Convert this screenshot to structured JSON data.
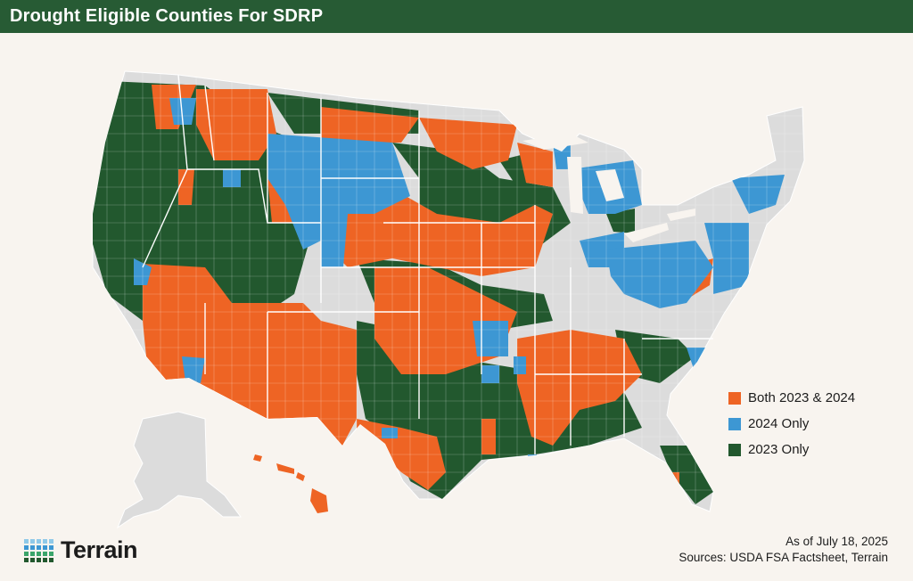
{
  "header": {
    "title": "Drought Eligible Counties For SDRP"
  },
  "legend": {
    "items": [
      {
        "label": "Both 2023 & 2024",
        "color": "#ee6424"
      },
      {
        "label": "2024 Only",
        "color": "#3d97d3"
      },
      {
        "label": "2023 Only",
        "color": "#22582e"
      }
    ]
  },
  "colors": {
    "header_bg": "#275b34",
    "background": "#f8f4ef",
    "non_eligible": "#dcdcdc",
    "both": "#ee6424",
    "only_2024": "#3d97d3",
    "only_2023": "#22582e"
  },
  "footer": {
    "as_of": "As of July 18, 2025",
    "sources": "Sources: USDA FSA Factsheet, Terrain"
  },
  "logo": {
    "name": "Terrain",
    "icon": "dot-grid-logo-icon"
  }
}
